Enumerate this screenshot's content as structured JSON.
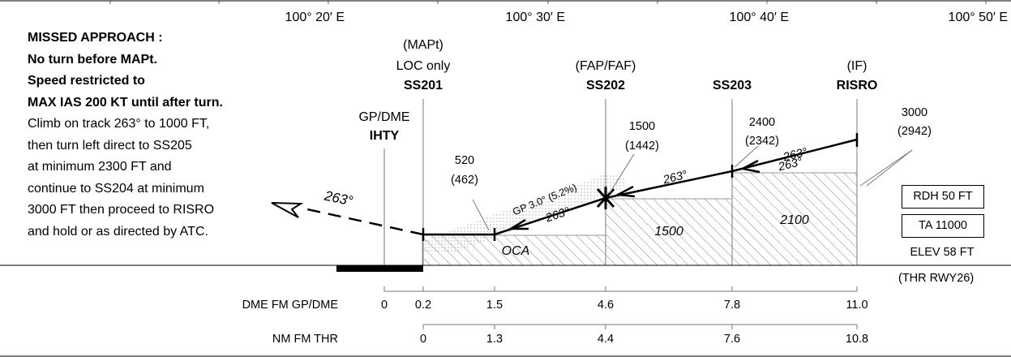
{
  "longitudes": [
    "100° 20′ E",
    "100° 30′ E",
    "100° 40′ E",
    "100° 50′ E"
  ],
  "missed_approach": [
    {
      "text": "MISSED APPROACH :",
      "bold": true
    },
    {
      "text": "No turn before MAPt.",
      "bold": true
    },
    {
      "text": "Speed restricted to",
      "bold": true
    },
    {
      "text": "MAX IAS 200 KT until after turn.",
      "bold": true
    },
    {
      "text": "Climb on track 263° to 1000 FT,",
      "bold": false
    },
    {
      "text": "then turn left direct to SS205",
      "bold": false
    },
    {
      "text": "at minimum 2300 FT and",
      "bold": false
    },
    {
      "text": "continue to SS204 at minimum",
      "bold": false
    },
    {
      "text": "3000 FT then proceed to RISRO",
      "bold": false
    },
    {
      "text": "and hold or as directed by ATC.",
      "bold": false
    }
  ],
  "fixes": {
    "gpdme": {
      "label": "GP/DME",
      "name": "IHTY"
    },
    "mapt": {
      "role": "(MAPt)",
      "note": "LOC only",
      "name": "SS201"
    },
    "faf": {
      "role": "(FAP/FAF)",
      "name": "SS202"
    },
    "ss203": {
      "name": "SS203"
    },
    "if": {
      "role": "(IF)",
      "name": "RISRO"
    }
  },
  "altitudes": {
    "a520": {
      "alt": "520",
      "hgt": "(462)"
    },
    "a1500": {
      "alt": "1500",
      "hgt": "(1442)"
    },
    "a2400": {
      "alt": "2400",
      "hgt": "(2342)"
    },
    "a3000": {
      "alt": "3000",
      "hgt": "(2942)"
    }
  },
  "tracks": {
    "missed": "263°",
    "t1": "263°",
    "t2": "263°",
    "t3": "263°",
    "t4": "263°"
  },
  "glidepath": "GP 3.0° (5.2%)",
  "oca": {
    "label": "OCA",
    "s1500": "1500",
    "s2100": "2100"
  },
  "info": {
    "rdh": "RDH 50 FT",
    "ta": "TA 11000",
    "elev": "ELEV 58 FT",
    "thr": "(THR RWY26)"
  },
  "scales": {
    "dme": {
      "label": "DME FM GP/DME",
      "ticks": [
        "0",
        "0.2",
        "1.5",
        "4.6",
        "7.8",
        "11.0"
      ]
    },
    "nm": {
      "label": "NM FM THR",
      "ticks": [
        "0",
        "1.3",
        "4.4",
        "7.6",
        "10.8"
      ]
    }
  }
}
